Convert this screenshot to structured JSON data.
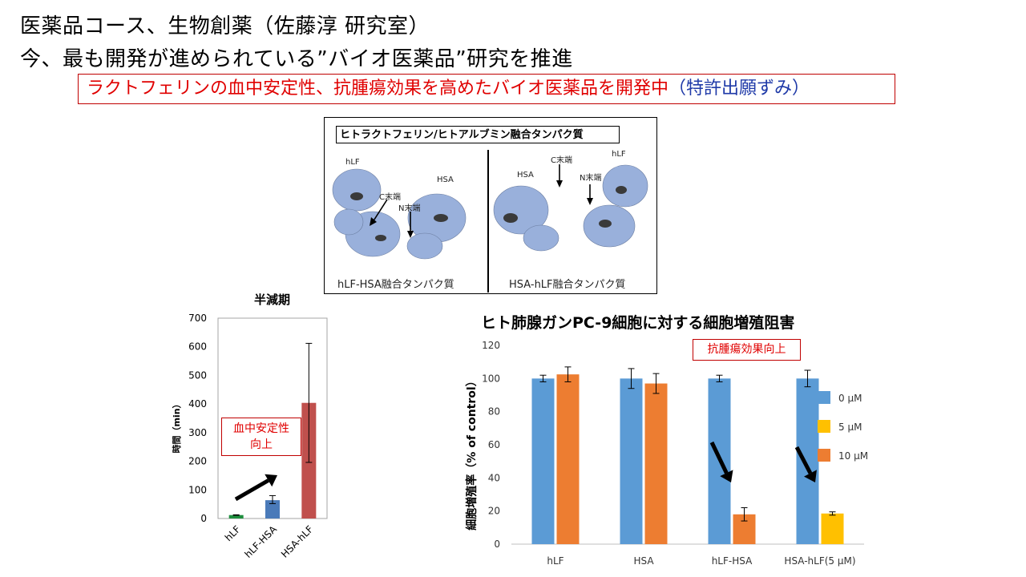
{
  "header": {
    "line1": "医薬品コース、生物創薬（佐藤淳 研究室）",
    "line2": "今、最も開発が進められている”バイオ医薬品”研究を推進"
  },
  "banner": {
    "red_text": "ラクトフェリンの血中安定性、抗腫瘍効果を高めたバイオ医薬品を開発中",
    "blue_text": "（特許出願ずみ）"
  },
  "figure": {
    "title": "ヒトラクトフェリン/ヒトアルブミン融合タンパク質",
    "left_caption": "hLF-HSA融合タンパク質",
    "right_caption": "HSA-hLF融合タンパク質",
    "labels": {
      "hlf_left": "hLF",
      "hsa_left": "HSA",
      "c_left": "C末端",
      "n_left": "N末端",
      "hsa_right": "HSA",
      "c_right": "C末端",
      "n_right": "N末端",
      "hlf_right": "hLF"
    },
    "colors": {
      "protein": "#8ea8d8",
      "protein_dark": "#3a3a3a"
    }
  },
  "chart_data": [
    {
      "type": "bar",
      "title": "半減期",
      "ylabel": "時間（min）",
      "categories": [
        "hLF",
        "hLF-HSA",
        "HSA-hLF"
      ],
      "values": [
        12,
        64,
        404
      ],
      "error_low": [
        11,
        52,
        196
      ],
      "error_high": [
        13,
        80,
        612
      ],
      "colors": [
        "#1e8e3e",
        "#4a7ab9",
        "#c0504d"
      ],
      "ylim": [
        0,
        700
      ],
      "yticks": [
        0,
        100,
        200,
        300,
        400,
        500,
        600,
        700
      ],
      "annotation": [
        "血中安定性",
        "向上"
      ]
    },
    {
      "type": "bar",
      "title": "ヒト肺腺ガンPC-9細胞に対する細胞増殖阻害",
      "ylabel": "細胞増殖率（% of control）",
      "categories": [
        "hLF",
        "HSA",
        "hLF-HSA",
        "HSA-hLF(5 μM)"
      ],
      "legend_position": "right",
      "series": [
        {
          "name": "0 μM",
          "color": "#5b9bd5",
          "values": [
            100,
            100,
            100,
            100
          ],
          "errors": [
            2,
            6,
            2,
            5
          ]
        },
        {
          "name": "5 μM",
          "color": "#ffc000",
          "values": [
            null,
            null,
            null,
            18.5
          ],
          "errors": [
            null,
            null,
            null,
            1
          ]
        },
        {
          "name": "10 μM",
          "color": "#ed7d31",
          "values": [
            102.5,
            97,
            18,
            null
          ],
          "errors": [
            4.5,
            6,
            4,
            null
          ]
        }
      ],
      "ylim": [
        0,
        120
      ],
      "yticks": [
        0,
        20,
        40,
        60,
        80,
        100,
        120
      ],
      "annotation": "抗腫瘍効果向上"
    }
  ]
}
